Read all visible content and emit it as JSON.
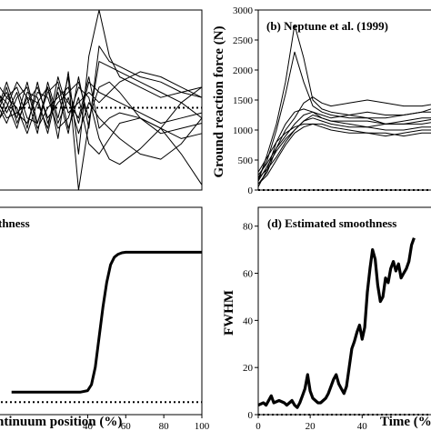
{
  "chart_data": [
    {
      "id": "a",
      "type": "line",
      "title": "",
      "xlabel": "",
      "ylabel": "",
      "ylim": [
        -1.6,
        1.9
      ],
      "yticks": [],
      "reference_line": 0,
      "series": [
        {
          "x": [
            0,
            5,
            10,
            15,
            20,
            25,
            30,
            35,
            40,
            45,
            50,
            55,
            60,
            70,
            80,
            90,
            100
          ],
          "y": [
            0.0,
            0.3,
            -0.2,
            0.5,
            -0.3,
            0.4,
            -0.6,
            0.7,
            -0.9,
            1.0,
            1.9,
            1.0,
            0.6,
            0.4,
            0.2,
            0.3,
            0.4
          ]
        },
        {
          "x": [
            0,
            5,
            10,
            15,
            20,
            25,
            30,
            35,
            40,
            45,
            50,
            55,
            60,
            70,
            80,
            90,
            100
          ],
          "y": [
            0.4,
            -0.1,
            0.3,
            -0.4,
            0.5,
            -0.3,
            0.3,
            -0.5,
            0.6,
            -0.4,
            1.2,
            0.9,
            0.8,
            0.6,
            0.5,
            0.3,
            0.2
          ]
        },
        {
          "x": [
            0,
            5,
            10,
            15,
            20,
            25,
            30,
            35,
            40,
            45,
            50,
            55,
            60,
            70,
            80,
            90,
            100
          ],
          "y": [
            -0.2,
            0.4,
            -0.3,
            0.2,
            -0.5,
            0.5,
            -0.2,
            0.6,
            -1.6,
            -0.3,
            0.9,
            0.8,
            0.7,
            0.5,
            0.3,
            0.1,
            -0.2
          ]
        },
        {
          "x": [
            0,
            5,
            10,
            15,
            20,
            25,
            30,
            35,
            40,
            45,
            50,
            55,
            60,
            70,
            80,
            90,
            100
          ],
          "y": [
            0.3,
            0.1,
            -0.4,
            0.3,
            0.2,
            -0.5,
            0.4,
            0.1,
            -0.2,
            0.6,
            -0.4,
            -0.2,
            -0.1,
            -0.2,
            -0.4,
            -0.9,
            -1.5
          ]
        },
        {
          "x": [
            0,
            5,
            10,
            15,
            20,
            25,
            30,
            35,
            40,
            45,
            50,
            55,
            60,
            70,
            80,
            90,
            100
          ],
          "y": [
            -0.4,
            0.2,
            0.4,
            -0.2,
            -0.3,
            0.3,
            0.5,
            -0.4,
            0.2,
            -0.7,
            -0.9,
            -0.6,
            -0.3,
            -0.2,
            -0.4,
            -0.6,
            -0.5
          ]
        },
        {
          "x": [
            0,
            5,
            10,
            15,
            20,
            25,
            30,
            35,
            40,
            45,
            50,
            55,
            60,
            70,
            80,
            90,
            100
          ],
          "y": [
            0.1,
            -0.3,
            0.2,
            0.4,
            -0.4,
            0.0,
            0.2,
            0.4,
            -0.3,
            0.5,
            0.3,
            0.2,
            0.1,
            -0.1,
            -0.3,
            -0.2,
            -0.1
          ]
        },
        {
          "x": [
            0,
            5,
            10,
            15,
            20,
            25,
            30,
            35,
            40,
            45,
            50,
            55,
            60,
            70,
            80,
            90,
            100
          ],
          "y": [
            -0.1,
            0.5,
            -0.1,
            -0.3,
            0.3,
            0.2,
            -0.4,
            -0.2,
            0.4,
            0.2,
            -0.6,
            -1.0,
            -1.1,
            -0.8,
            -0.4,
            0.1,
            0.4
          ]
        },
        {
          "x": [
            0,
            5,
            10,
            15,
            20,
            25,
            30,
            35,
            40,
            45,
            50,
            55,
            60,
            70,
            80,
            90,
            100
          ],
          "y": [
            0.2,
            -0.2,
            -0.1,
            0.1,
            0.4,
            -0.2,
            0.1,
            0.3,
            0.5,
            -0.2,
            0.4,
            0.5,
            0.3,
            -0.2,
            -0.5,
            -0.4,
            -0.3
          ]
        },
        {
          "x": [
            0,
            5,
            10,
            15,
            20,
            25,
            30,
            35,
            40,
            45,
            50,
            55,
            60,
            70,
            80,
            90,
            100
          ],
          "y": [
            -0.3,
            0.0,
            0.5,
            0.2,
            0.1,
            -0.4,
            0.6,
            -0.1,
            0.1,
            0.3,
            0.1,
            0.3,
            0.5,
            0.7,
            0.6,
            0.4,
            0.2
          ]
        },
        {
          "x": [
            0,
            5,
            10,
            15,
            20,
            25,
            30,
            35,
            40,
            45,
            50,
            55,
            60,
            70,
            80,
            90,
            100
          ],
          "y": [
            0.5,
            0.2,
            0.0,
            -0.5,
            0.1,
            0.4,
            -0.3,
            0.2,
            -0.5,
            0.1,
            -0.2,
            -0.4,
            -0.6,
            -0.9,
            -1.0,
            -0.7,
            -0.2
          ]
        }
      ]
    },
    {
      "id": "b",
      "type": "line",
      "title": "(b) Neptune et al. (1999)",
      "xlabel": "",
      "ylabel": "Ground reaction force  (N)",
      "ylim": [
        0,
        3000
      ],
      "yticks": [
        0,
        500,
        1000,
        1500,
        2000,
        2500,
        3000
      ],
      "reference_line": 0,
      "series": [
        {
          "x": [
            0,
            5,
            10,
            15,
            20,
            25,
            30,
            35,
            40,
            50,
            60,
            70,
            80,
            90,
            100
          ],
          "y": [
            150,
            600,
            1100,
            1800,
            2750,
            2200,
            1500,
            1350,
            1300,
            1250,
            1200,
            1200,
            1250,
            1300,
            1400
          ]
        },
        {
          "x": [
            0,
            5,
            10,
            15,
            20,
            25,
            30,
            35,
            40,
            50,
            60,
            70,
            80,
            90,
            100
          ],
          "y": [
            200,
            500,
            1000,
            1600,
            2300,
            1800,
            1400,
            1300,
            1250,
            1200,
            1200,
            1100,
            1100,
            1100,
            1150
          ]
        },
        {
          "x": [
            0,
            5,
            10,
            15,
            20,
            25,
            30,
            35,
            40,
            50,
            60,
            70,
            80,
            90,
            100
          ],
          "y": [
            100,
            300,
            700,
            1000,
            1200,
            1450,
            1550,
            1450,
            1400,
            1450,
            1500,
            1450,
            1400,
            1400,
            1450
          ]
        },
        {
          "x": [
            0,
            5,
            10,
            15,
            20,
            25,
            30,
            35,
            40,
            50,
            60,
            70,
            80,
            90,
            100
          ],
          "y": [
            250,
            450,
            700,
            900,
            1100,
            1250,
            1300,
            1250,
            1200,
            1250,
            1300,
            1250,
            1250,
            1300,
            1300
          ]
        },
        {
          "x": [
            0,
            5,
            10,
            15,
            20,
            25,
            30,
            35,
            40,
            50,
            60,
            70,
            80,
            90,
            100
          ],
          "y": [
            50,
            350,
            800,
            1100,
            1300,
            1350,
            1300,
            1200,
            1150,
            1100,
            1050,
            1100,
            1150,
            1200,
            1200
          ]
        },
        {
          "x": [
            0,
            5,
            10,
            15,
            20,
            25,
            30,
            35,
            40,
            50,
            60,
            70,
            80,
            90,
            100
          ],
          "y": [
            150,
            400,
            650,
            850,
            1000,
            1150,
            1200,
            1150,
            1100,
            1050,
            1050,
            1000,
            1000,
            1050,
            1050
          ]
        },
        {
          "x": [
            0,
            5,
            10,
            15,
            20,
            25,
            30,
            35,
            40,
            50,
            60,
            70,
            80,
            90,
            100
          ],
          "y": [
            300,
            550,
            800,
            950,
            1050,
            1100,
            1100,
            1050,
            1000,
            950,
            950,
            950,
            900,
            950,
            950
          ]
        },
        {
          "x": [
            0,
            5,
            10,
            15,
            20,
            25,
            30,
            35,
            40,
            50,
            60,
            70,
            80,
            90,
            100
          ],
          "y": [
            100,
            250,
            500,
            750,
            950,
            1050,
            1100,
            1100,
            1050,
            1000,
            950,
            900,
            950,
            1000,
            1000
          ]
        },
        {
          "x": [
            0,
            5,
            10,
            15,
            20,
            25,
            30,
            35,
            40,
            50,
            60,
            70,
            80,
            90,
            100
          ],
          "y": [
            200,
            350,
            550,
            800,
            1000,
            1150,
            1250,
            1200,
            1150,
            1150,
            1150,
            1100,
            1100,
            1150,
            1200
          ]
        }
      ]
    },
    {
      "id": "c",
      "type": "line",
      "title": "thness",
      "xlabel": "ntinuum position  (%)",
      "ylabel": "",
      "xlim": [
        0,
        100
      ],
      "xticks": [
        40,
        60,
        80,
        100
      ],
      "ylim": [
        -0.25,
        3.9
      ],
      "yticks": [],
      "reference_line": 0,
      "series": [
        {
          "x": [
            0,
            36,
            40,
            42,
            44,
            46,
            48,
            50,
            52,
            54,
            56,
            58,
            60,
            65,
            100
          ],
          "y": [
            0.2,
            0.2,
            0.23,
            0.35,
            0.7,
            1.3,
            1.9,
            2.4,
            2.75,
            2.9,
            2.96,
            2.99,
            3.0,
            3.0,
            3.0
          ]
        }
      ]
    },
    {
      "id": "d",
      "type": "line",
      "title": "(d) Estimated smoothness",
      "xlabel": "Time  (%",
      "ylabel": "FWHM",
      "xticks": [
        0,
        20,
        40
      ],
      "ylim": [
        0,
        88
      ],
      "yticks": [
        0,
        20,
        40,
        60,
        80
      ],
      "reference_line": 0,
      "series": [
        {
          "x": [
            0,
            2,
            3,
            5,
            6,
            8,
            10,
            11,
            12,
            13,
            14,
            15,
            16,
            17,
            18,
            19,
            20,
            21,
            22,
            23,
            24,
            25,
            26,
            27,
            28,
            29,
            30,
            31,
            32,
            33,
            34,
            35,
            36,
            37,
            38,
            39,
            40,
            41,
            42,
            43,
            44,
            45,
            46,
            47,
            48,
            49,
            50,
            51,
            52,
            53,
            54,
            55,
            56,
            57,
            58,
            59,
            60
          ],
          "y": [
            4,
            5,
            4,
            8,
            5,
            6,
            5,
            4,
            5,
            6,
            4,
            3,
            5,
            8,
            11,
            17,
            10,
            7,
            6,
            5,
            5,
            6,
            7,
            9,
            12,
            15,
            17,
            13,
            11,
            9,
            12,
            20,
            28,
            31,
            35,
            38,
            32,
            37,
            52,
            62,
            70,
            66,
            55,
            48,
            50,
            58,
            56,
            62,
            65,
            61,
            64,
            58,
            60,
            62,
            65,
            72,
            75
          ]
        }
      ]
    }
  ]
}
